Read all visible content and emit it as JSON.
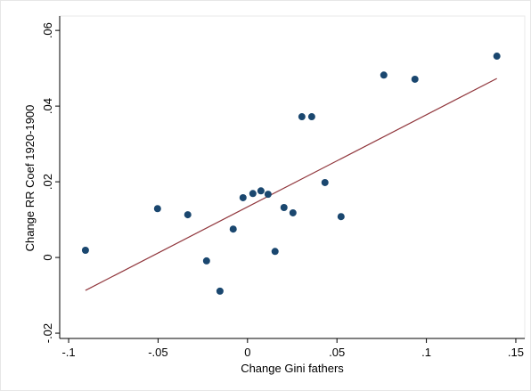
{
  "chart_data": {
    "type": "scatter",
    "xlabel": "Change Gini fathers",
    "ylabel": "Change RR Coef 1920-1900",
    "x": [
      -0.0906,
      -0.0503,
      -0.0334,
      -0.0229,
      -0.0154,
      -0.008,
      -0.0025,
      0.003,
      0.0075,
      0.0115,
      0.0154,
      0.0204,
      0.0254,
      0.0304,
      0.0359,
      0.0433,
      0.0523,
      0.0762,
      0.0936,
      0.1394
    ],
    "values": [
      0.0019,
      0.0129,
      0.0113,
      -0.0009,
      -0.0089,
      0.0075,
      0.0158,
      0.0169,
      0.0176,
      0.0167,
      0.0016,
      0.0132,
      0.0118,
      0.0372,
      0.0372,
      0.0198,
      0.0108,
      0.0482,
      0.0471,
      0.0532
    ],
    "color": "#1a476f",
    "fit": {
      "x": [
        -0.0906,
        0.1394
      ],
      "y": [
        -0.0087,
        0.0473
      ],
      "color": "#90353b"
    },
    "xlim": [
      -0.105,
      0.155
    ],
    "ylim": [
      -0.0214,
      0.0638
    ],
    "xticks": [
      {
        "value": -0.1,
        "label": "-.1"
      },
      {
        "value": -0.05,
        "label": "-.05"
      },
      0,
      {
        "value": 0.05,
        "label": ".05"
      },
      {
        "value": 0.1,
        "label": ".1"
      },
      {
        "value": 0.15,
        "label": ".15"
      }
    ],
    "yticks": [
      {
        "value": -0.02,
        "label": "-.02"
      },
      0,
      {
        "value": 0.02,
        "label": ".02"
      },
      {
        "value": 0.04,
        "label": ".04"
      },
      {
        "value": 0.06,
        "label": ".06"
      }
    ]
  }
}
